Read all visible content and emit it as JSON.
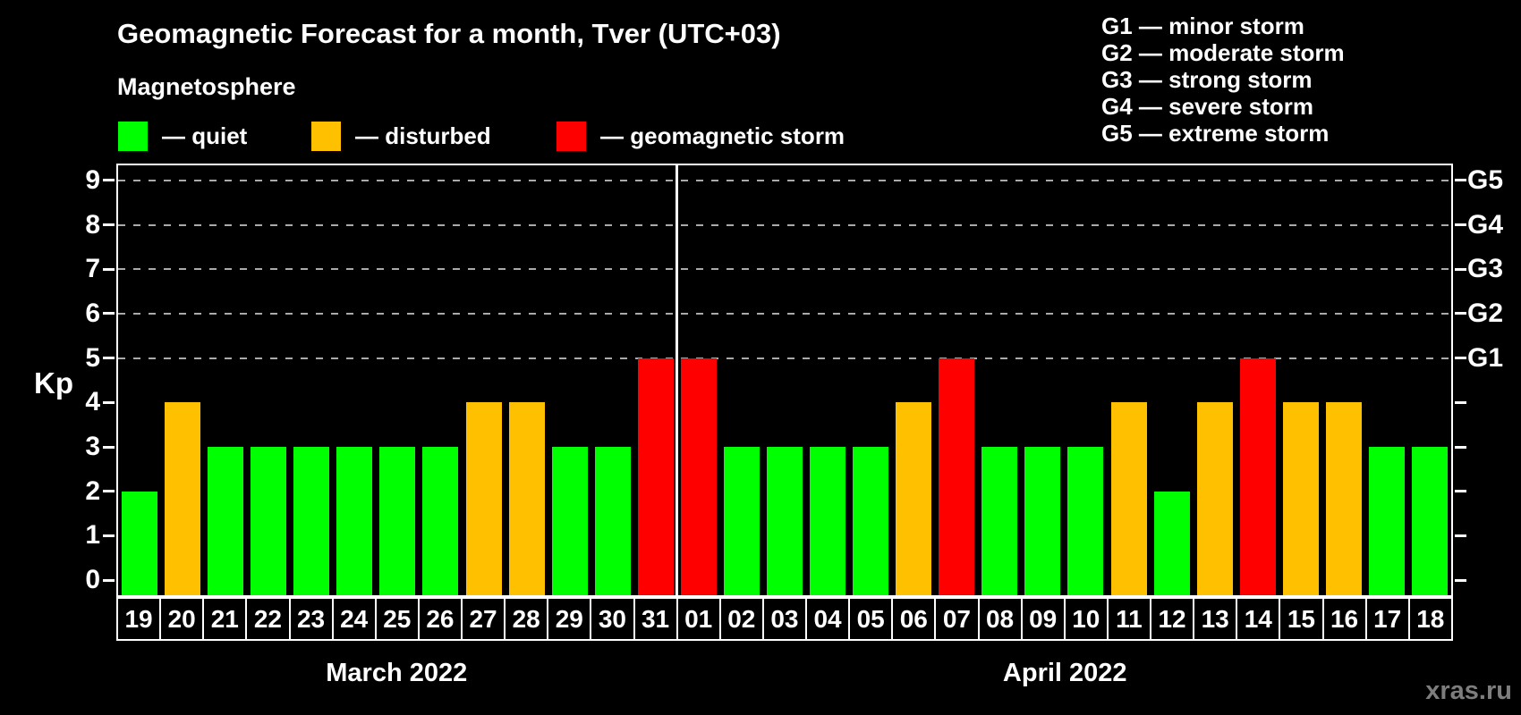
{
  "title": "Geomagnetic Forecast for a month, Tver (UTC+03)",
  "watermark": "xras.ru",
  "magnetosphere_legend": {
    "heading": "Magnetosphere",
    "items": [
      {
        "name": "quiet",
        "label": "— quiet",
        "color": "#00FF00"
      },
      {
        "name": "disturbed",
        "label": "— disturbed",
        "color": "#FFC000"
      },
      {
        "name": "geomagnetic-storm",
        "label": "— geomagnetic storm",
        "color": "#FF0000"
      }
    ]
  },
  "g_scale_legend": [
    "G1 — minor storm",
    "G2 — moderate storm",
    "G3 — strong storm",
    "G4 — severe storm",
    "G5 — extreme storm"
  ],
  "chart_data": {
    "type": "bar",
    "title": "Geomagnetic Forecast for a month, Tver (UTC+03)",
    "ylabel": "Kp",
    "ylim": [
      0,
      9
    ],
    "y_ticks": [
      0,
      1,
      2,
      3,
      4,
      5,
      6,
      7,
      8,
      9
    ],
    "gridlines_at_kp": [
      5,
      6,
      7,
      8,
      9
    ],
    "grid_style": "dashed",
    "right_axis_labels": [
      {
        "kp": 5,
        "label": "G1"
      },
      {
        "kp": 6,
        "label": "G2"
      },
      {
        "kp": 7,
        "label": "G3"
      },
      {
        "kp": 8,
        "label": "G4"
      },
      {
        "kp": 9,
        "label": "G5"
      }
    ],
    "months": [
      {
        "label": "March 2022",
        "days": [
          "19",
          "20",
          "21",
          "22",
          "23",
          "24",
          "25",
          "26",
          "27",
          "28",
          "29",
          "30",
          "31"
        ],
        "values": [
          2,
          4,
          3,
          3,
          3,
          3,
          3,
          3,
          4,
          4,
          3,
          3,
          5
        ]
      },
      {
        "label": "April 2022",
        "days": [
          "01",
          "02",
          "03",
          "04",
          "05",
          "06",
          "07",
          "08",
          "09",
          "10",
          "11",
          "12",
          "13",
          "14",
          "15",
          "16",
          "17",
          "18"
        ],
        "values": [
          5,
          3,
          3,
          3,
          3,
          4,
          5,
          3,
          3,
          3,
          4,
          2,
          4,
          5,
          4,
          4,
          3,
          3
        ]
      }
    ],
    "color_rule": {
      "quiet_max_kp": 3,
      "disturbed_kp": 4,
      "storm_min_kp": 5
    },
    "colors": {
      "quiet": "#00FF00",
      "disturbed": "#FFC000",
      "storm": "#FF0000"
    }
  }
}
